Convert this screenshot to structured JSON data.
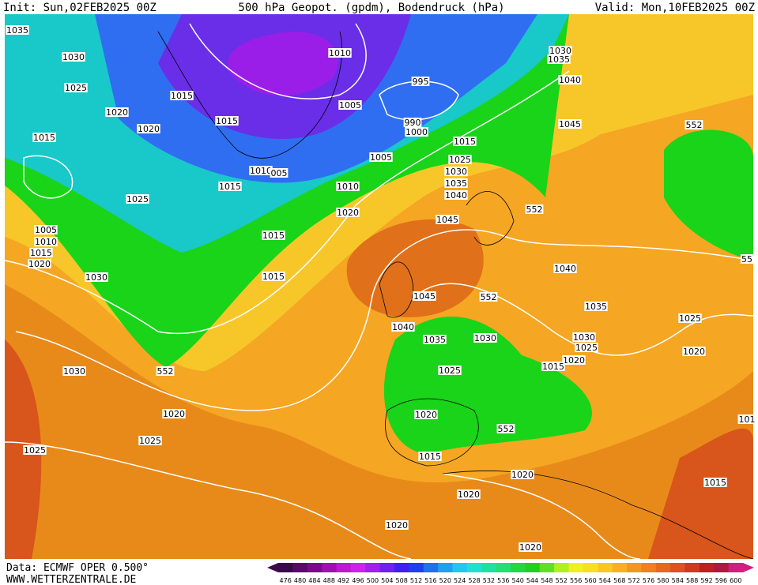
{
  "header": {
    "init": "Init: Sun,02FEB2025 00Z",
    "title": "500 hPa Geopot. (gpdm), Bodendruck (hPa)",
    "valid": "Valid: Mon,10FEB2025 00Z"
  },
  "footer": {
    "source": "Data: ECMWF OPER 0.500°",
    "website": "WWW.WETTERZENTRALE.DE"
  },
  "isobar_labels": [
    "1035",
    "1030",
    "1025",
    "1020",
    "1020",
    "1015",
    "1015",
    "1010",
    "995",
    "1005",
    "990",
    "1000",
    "1015",
    "1015",
    "1010",
    "005",
    "1005",
    "1015",
    "1025",
    "1030",
    "1035",
    "1040",
    "1010",
    "1020",
    "1025",
    "1045",
    "1015",
    "1005",
    "1010",
    "1015",
    "1020",
    "1030",
    "1015",
    "1045",
    "1040",
    "1035",
    "1030",
    "1025",
    "1020",
    "1015",
    "1030",
    "1020",
    "1025",
    "1025",
    "1020",
    "1020",
    "1020",
    "1020",
    "1015",
    "1030",
    "1035",
    "1040",
    "1045",
    "1040",
    "1035",
    "1025",
    "1030",
    "1025",
    "1020",
    "1015",
    "1020",
    "101"
  ],
  "contour_labels": [
    "552",
    "552",
    "552",
    "552",
    "552",
    "55"
  ],
  "scale": {
    "values": [
      476,
      480,
      484,
      488,
      492,
      496,
      500,
      504,
      508,
      512,
      516,
      520,
      524,
      528,
      532,
      536,
      540,
      544,
      548,
      552,
      556,
      560,
      564,
      568,
      572,
      576,
      580,
      584,
      588,
      592,
      596,
      600
    ],
    "colors": [
      "#3a0a4a",
      "#5a0a6a",
      "#7a0a8a",
      "#a010b0",
      "#c018d0",
      "#d020f0",
      "#a020f0",
      "#7020f0",
      "#4020f0",
      "#2040f0",
      "#2070f0",
      "#20a0f0",
      "#20c8f0",
      "#20e0d0",
      "#20e0a0",
      "#20e070",
      "#20d840",
      "#20d020",
      "#60e020",
      "#b0f020",
      "#f0f020",
      "#f8e020",
      "#f8c820",
      "#f8b020",
      "#f09820",
      "#f08020",
      "#e86820",
      "#e05020",
      "#d03820",
      "#c02020",
      "#b01840",
      "#d02080"
    ]
  }
}
